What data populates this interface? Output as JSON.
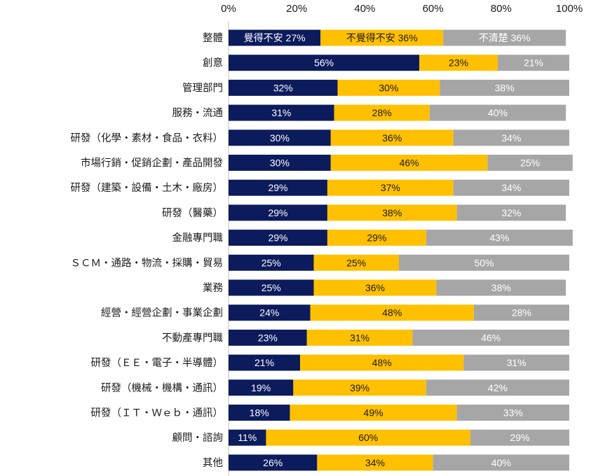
{
  "chart_data": {
    "type": "bar",
    "orientation": "horizontal",
    "stacked": "percent",
    "xlim": [
      0,
      100
    ],
    "x_ticks": [
      "0%",
      "20%",
      "40%",
      "60%",
      "80%",
      "100%"
    ],
    "x_axis_position": "top",
    "grid": false,
    "colors": {
      "覺得不安": "#0c1b5c",
      "不覺得不安": "#ffc000",
      "不清楚": "#a6a6a6"
    },
    "label_colors": {
      "覺得不安": "#ffffff",
      "不覺得不安": "#1a1a1a",
      "不清楚": "#ffffff"
    },
    "categories": [
      "整體",
      "創意",
      "管理部門",
      "服務・流通",
      "研發（化學・素材・食品・衣料）",
      "市場行銷・促銷企劃・產品開發",
      "研發（建築・設備・土木・廠房）",
      "研發（醫藥）",
      "金融專門職",
      "ＳＣＭ・通路・物流・採購・貿易",
      "業務",
      "經營・經營企劃・事業企劃",
      "不動產專門職",
      "研發（ＥＥ・電子・半導體）",
      "研發（機械・機構・通訊）",
      "研發（ＩＴ・Ｗｅｂ・通訊）",
      "顧問・諮詢",
      "其他"
    ],
    "series": [
      {
        "name": "覺得不安",
        "values": [
          27,
          56,
          32,
          31,
          30,
          30,
          29,
          29,
          29,
          25,
          25,
          24,
          23,
          21,
          19,
          18,
          11,
          26
        ]
      },
      {
        "name": "不覺得不安",
        "values": [
          36,
          23,
          30,
          28,
          36,
          46,
          37,
          38,
          29,
          25,
          36,
          48,
          31,
          48,
          39,
          49,
          60,
          34
        ]
      },
      {
        "name": "不清楚",
        "values": [
          36,
          21,
          38,
          40,
          34,
          25,
          34,
          32,
          43,
          50,
          38,
          28,
          46,
          31,
          42,
          33,
          29,
          40
        ]
      }
    ],
    "first_row_label_format": "{name}  {value}%",
    "label_format": "{value}%"
  }
}
